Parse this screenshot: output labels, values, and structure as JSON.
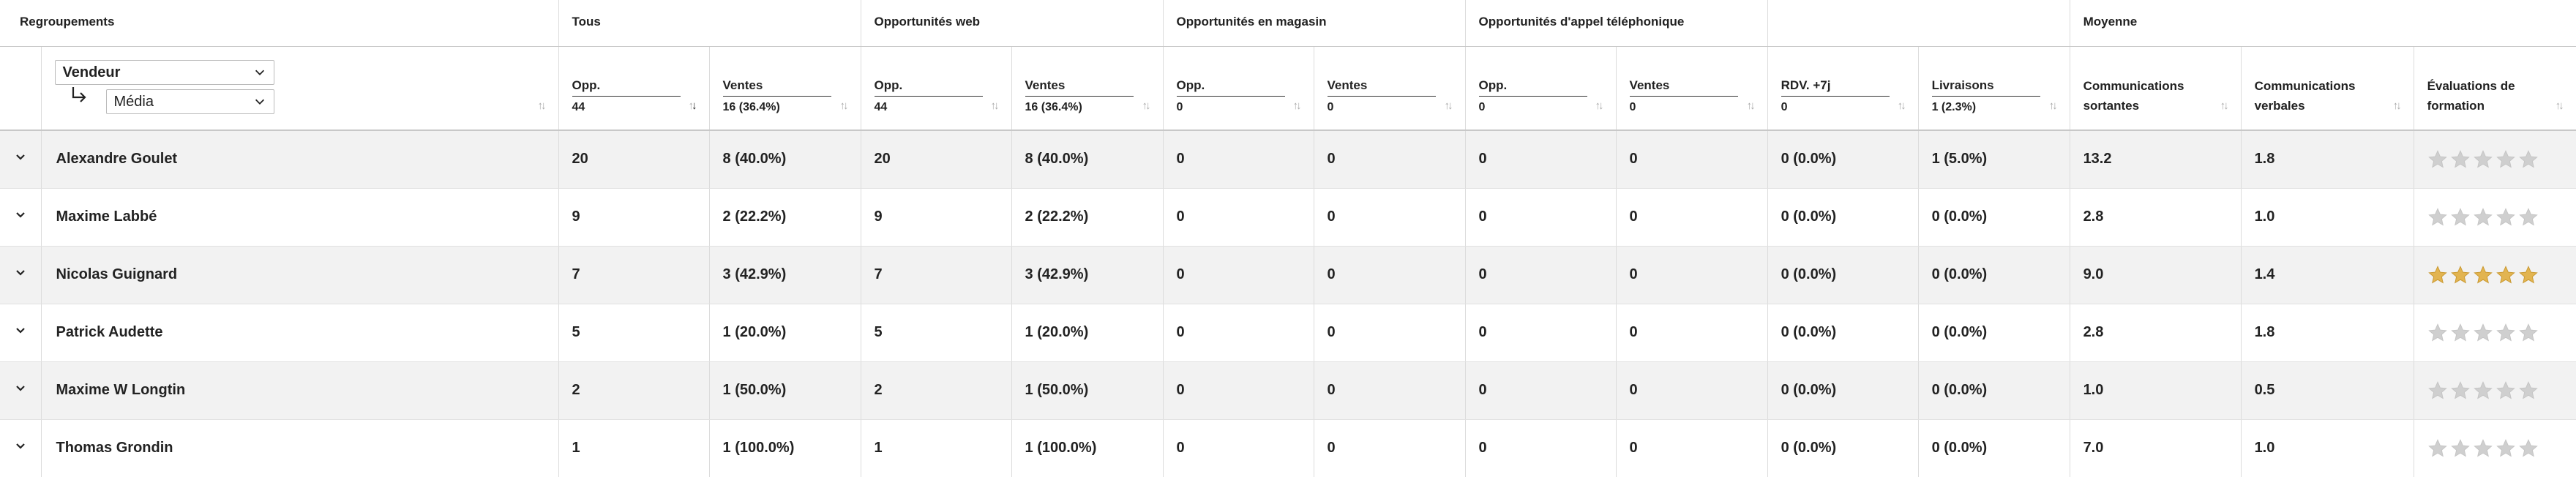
{
  "groups": {
    "regroupements": "Regroupements",
    "tous": "Tous",
    "web": "Opportunités web",
    "magasin": "Opportunités en magasin",
    "appel": "Opportunités d'appel téléphonique",
    "empty": "",
    "moyenne": "Moyenne"
  },
  "grouping": {
    "primary": "Vendeur",
    "secondary": "Média"
  },
  "columns": [
    {
      "label": "Opp.",
      "total": "44"
    },
    {
      "label": "Ventes",
      "total": "16 (36.4%)"
    },
    {
      "label": "Opp.",
      "total": "44"
    },
    {
      "label": "Ventes",
      "total": "16 (36.4%)"
    },
    {
      "label": "Opp.",
      "total": "0"
    },
    {
      "label": "Ventes",
      "total": "0"
    },
    {
      "label": "Opp.",
      "total": "0"
    },
    {
      "label": "Ventes",
      "total": "0"
    },
    {
      "label": "RDV. +7j",
      "total": "0"
    },
    {
      "label": "Livraisons",
      "total": "1 (2.3%)"
    }
  ],
  "avg_columns": [
    {
      "line1": "Communications",
      "line2": "sortantes"
    },
    {
      "line1": "Communications",
      "line2": "verbales"
    },
    {
      "line1": "Évaluations de",
      "line2": "formation"
    }
  ],
  "rows": [
    {
      "name": "Alexandre Goulet",
      "cells": [
        "20",
        "8 (40.0%)",
        "20",
        "8 (40.0%)",
        "0",
        "0",
        "0",
        "0",
        "0 (0.0%)",
        "1 (5.0%)",
        "13.2",
        "1.8"
      ],
      "rating": 0
    },
    {
      "name": "Maxime Labbé",
      "cells": [
        "9",
        "2 (22.2%)",
        "9",
        "2 (22.2%)",
        "0",
        "0",
        "0",
        "0",
        "0 (0.0%)",
        "0 (0.0%)",
        "2.8",
        "1.0"
      ],
      "rating": 0
    },
    {
      "name": "Nicolas Guignard",
      "cells": [
        "7",
        "3 (42.9%)",
        "7",
        "3 (42.9%)",
        "0",
        "0",
        "0",
        "0",
        "0 (0.0%)",
        "0 (0.0%)",
        "9.0",
        "1.4"
      ],
      "rating": 5
    },
    {
      "name": "Patrick Audette",
      "cells": [
        "5",
        "1 (20.0%)",
        "5",
        "1 (20.0%)",
        "0",
        "0",
        "0",
        "0",
        "0 (0.0%)",
        "0 (0.0%)",
        "2.8",
        "1.8"
      ],
      "rating": 0
    },
    {
      "name": "Maxime W Longtin",
      "cells": [
        "2",
        "1 (50.0%)",
        "2",
        "1 (50.0%)",
        "0",
        "0",
        "0",
        "0",
        "0 (0.0%)",
        "0 (0.0%)",
        "1.0",
        "0.5"
      ],
      "rating": 0
    },
    {
      "name": "Thomas Grondin",
      "cells": [
        "1",
        "1 (100.0%)",
        "1",
        "1 (100.0%)",
        "0",
        "0",
        "0",
        "0",
        "0 (0.0%)",
        "0 (0.0%)",
        "7.0",
        "1.0"
      ],
      "rating": 0
    }
  ],
  "colors": {
    "star_on": "#e2b450",
    "star_off": "#cfcfcf",
    "row_alt": "#f2f2f2"
  },
  "icons": {
    "expand": "chevron-down-icon",
    "sort": "sort-icon",
    "star": "star-icon",
    "sub": "subgroup-arrow-icon"
  }
}
